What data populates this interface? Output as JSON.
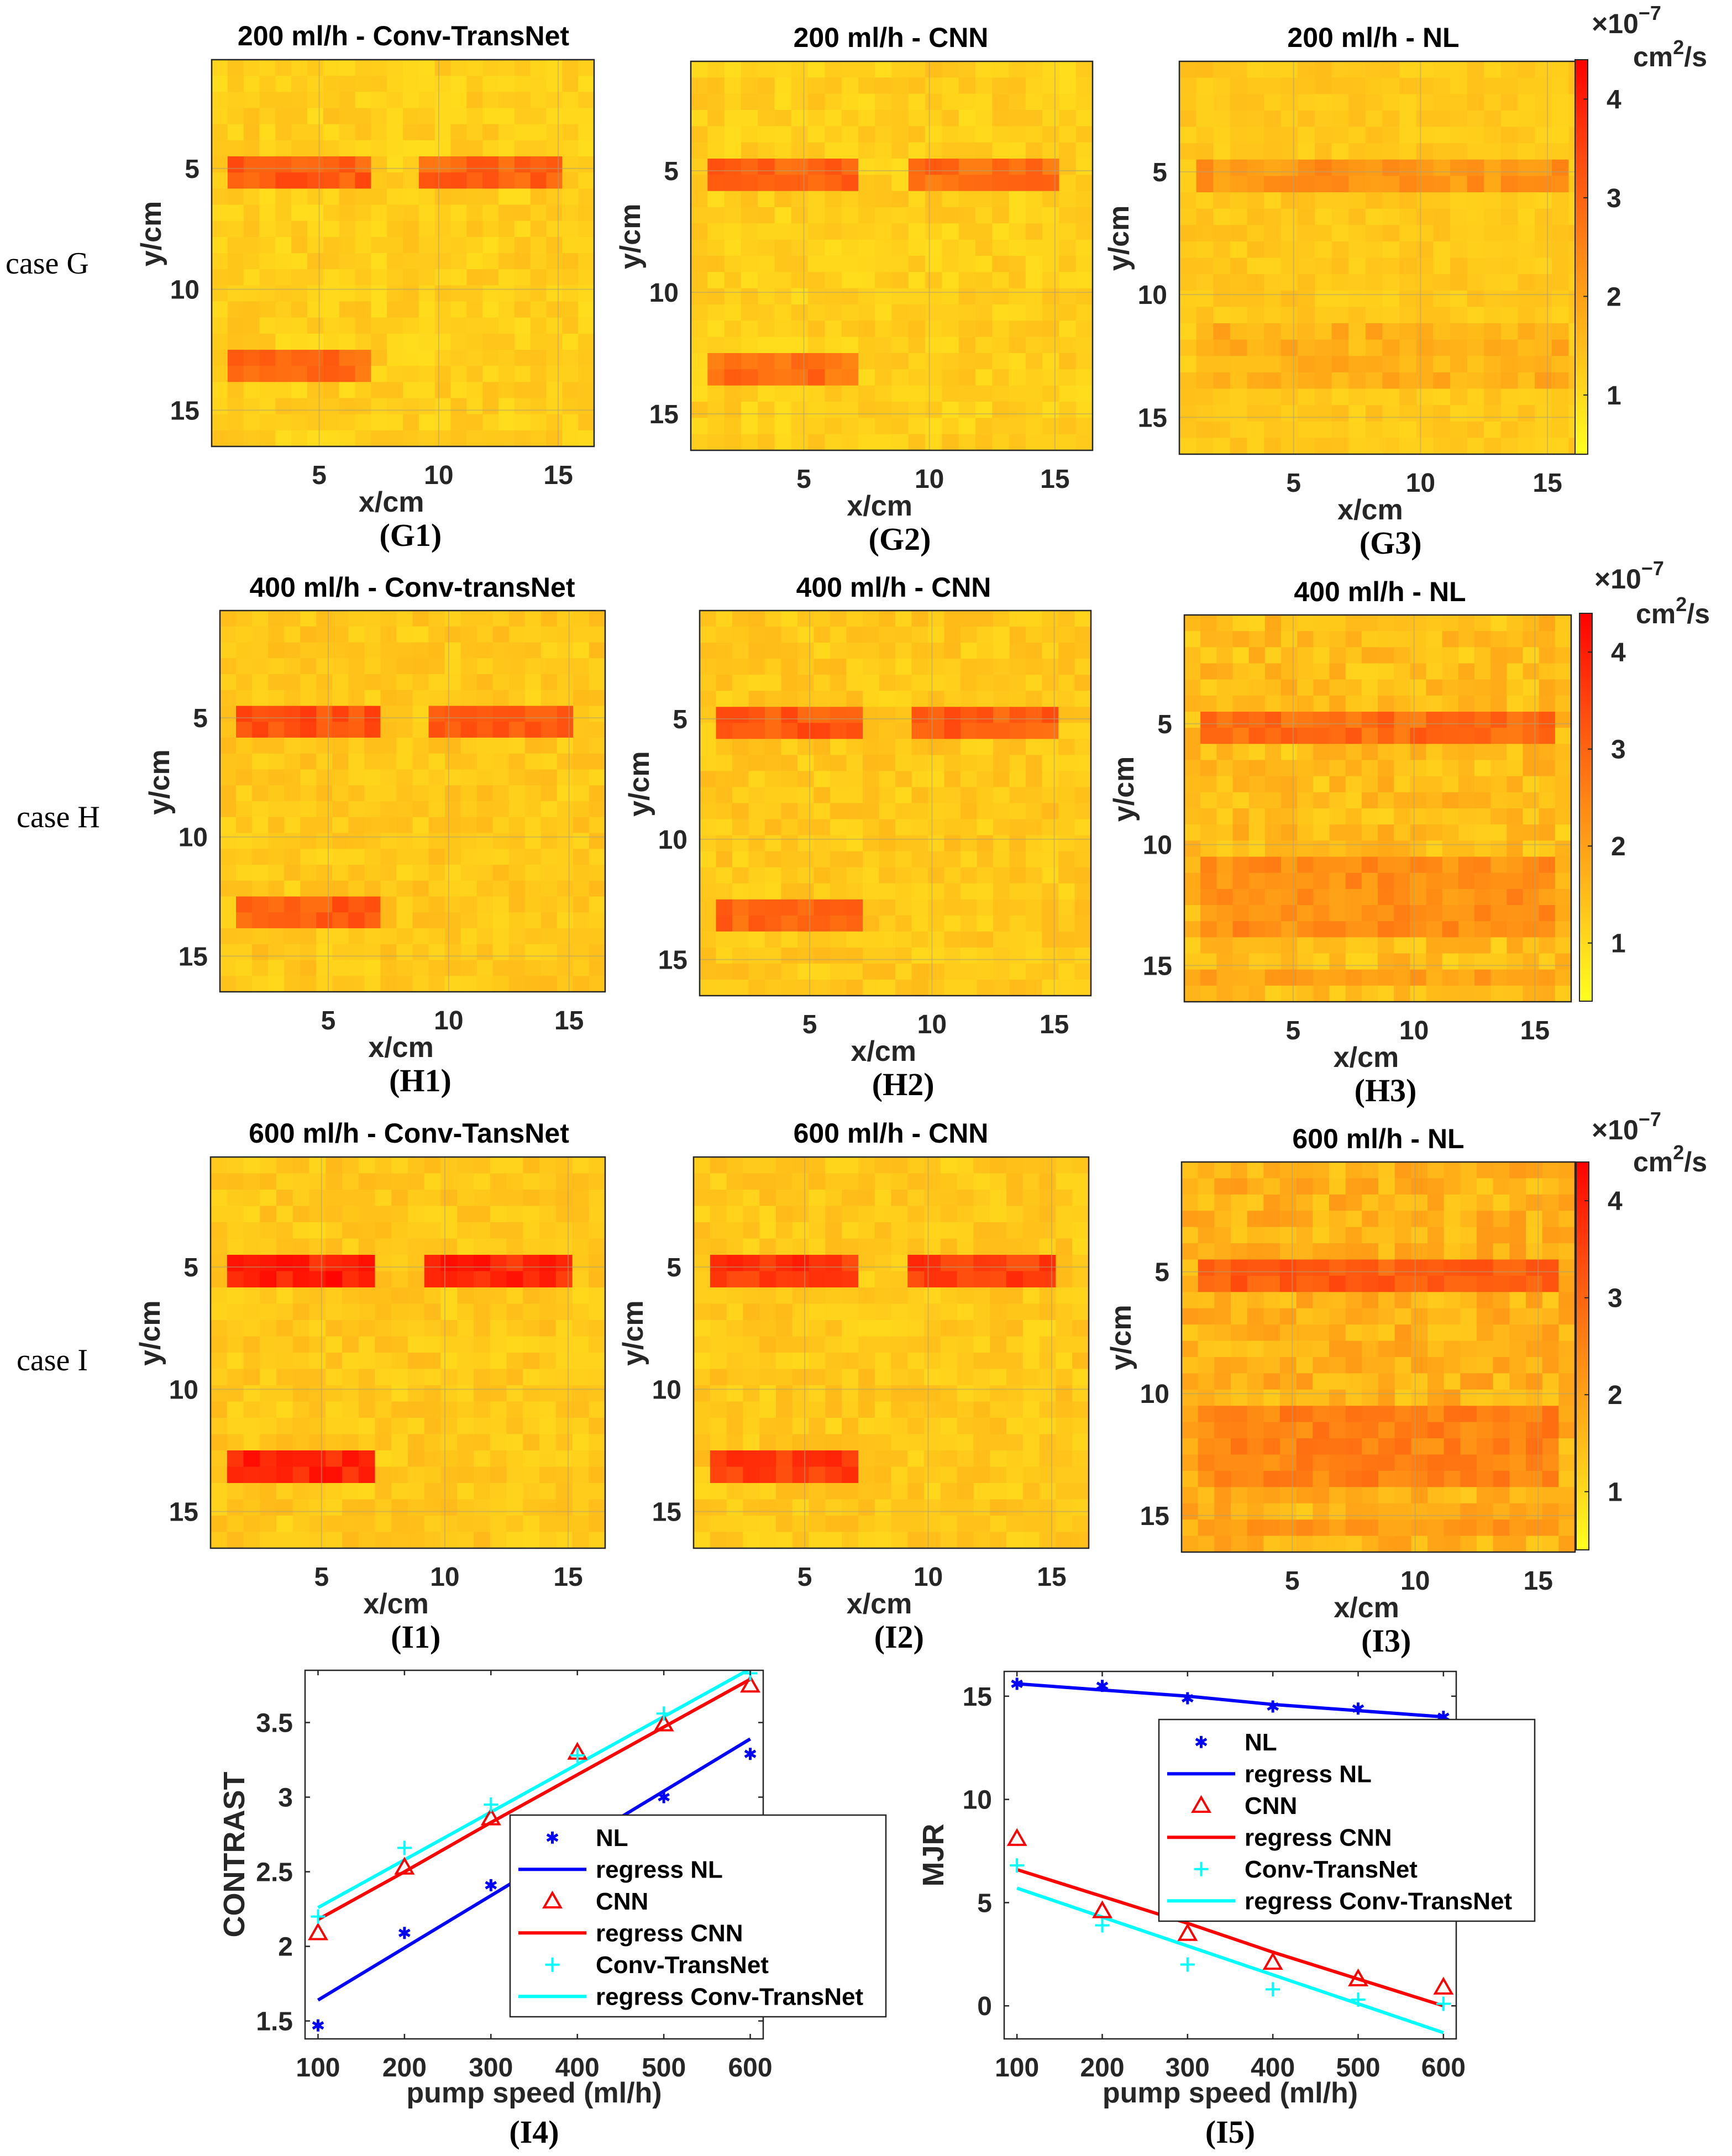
{
  "figure": {
    "case_labels": [
      "case G",
      "case H",
      "case I"
    ]
  },
  "colorbar": {
    "multiplier_base": "×10",
    "multiplier_exponent": "−7",
    "unit": "cm",
    "unit_exponent": "2",
    "unit_suffix": "/s",
    "ticks": [
      "1",
      "2",
      "3",
      "4"
    ],
    "colors": [
      "#ffff1e",
      "#ffc21a",
      "#ff8a14",
      "#ff4a0e",
      "#ff0000"
    ],
    "range": [
      0.4,
      4.4
    ]
  },
  "chart_data": [
    {
      "id": "G1",
      "type": "heatmap",
      "panel_label": "(G1)",
      "title": "200 ml/h - Conv-TransNet",
      "xlabel": "x/cm",
      "ylabel": "y/cm",
      "x_ticks": [
        5,
        10,
        15
      ],
      "y_ticks": [
        5,
        10,
        15
      ],
      "grid_size": 24,
      "x_range": [
        0.5,
        16.5
      ],
      "y_range": [
        0.5,
        16.5
      ],
      "background": 1.2,
      "background_noise": 0.5,
      "inclusions": [
        {
          "x": [
            1.3,
            7.2
          ],
          "y": [
            4.4,
            5.6
          ],
          "value": 3.1
        },
        {
          "x": [
            9.1,
            15.2
          ],
          "y": [
            4.4,
            5.6
          ],
          "value": 3.0
        },
        {
          "x": [
            1.3,
            7.2
          ],
          "y": [
            12.4,
            13.6
          ],
          "value": 2.9
        }
      ]
    },
    {
      "id": "G2",
      "type": "heatmap",
      "panel_label": "(G2)",
      "title": "200 ml/h - CNN",
      "xlabel": "x/cm",
      "ylabel": "y/cm",
      "x_ticks": [
        5,
        10,
        15
      ],
      "y_ticks": [
        5,
        10,
        15
      ],
      "grid_size": 24,
      "x_range": [
        0.5,
        16.5
      ],
      "y_range": [
        0.5,
        16.5
      ],
      "background": 1.2,
      "background_noise": 0.5,
      "inclusions": [
        {
          "x": [
            1.3,
            7.2
          ],
          "y": [
            4.4,
            5.6
          ],
          "value": 3.0
        },
        {
          "x": [
            9.1,
            15.2
          ],
          "y": [
            4.4,
            5.6
          ],
          "value": 2.9
        },
        {
          "x": [
            1.3,
            7.2
          ],
          "y": [
            12.4,
            13.6
          ],
          "value": 2.8
        }
      ]
    },
    {
      "id": "G3",
      "type": "heatmap",
      "panel_label": "(G3)",
      "title": "200 ml/h - NL",
      "xlabel": "x/cm",
      "ylabel": "y/cm",
      "x_ticks": [
        5,
        10,
        15
      ],
      "y_ticks": [
        5,
        10,
        15
      ],
      "grid_size": 24,
      "x_range": [
        0.5,
        16.5
      ],
      "y_range": [
        0.5,
        16.5
      ],
      "background": 1.3,
      "background_noise": 0.4,
      "inclusions": [
        {
          "x": [
            1.0,
            15.5
          ],
          "y": [
            4.4,
            5.6
          ],
          "value": 2.2
        },
        {
          "x": [
            1.0,
            15.5
          ],
          "y": [
            11.0,
            14.0
          ],
          "value": 1.7
        }
      ]
    },
    {
      "id": "H1",
      "type": "heatmap",
      "panel_label": "(H1)",
      "title": "400 ml/h - Conv-transNet",
      "xlabel": "x/cm",
      "ylabel": "y/cm",
      "x_ticks": [
        5,
        10,
        15
      ],
      "y_ticks": [
        5,
        10,
        15
      ],
      "grid_size": 24,
      "x_range": [
        0.5,
        16.5
      ],
      "y_range": [
        0.5,
        16.5
      ],
      "background": 1.3,
      "background_noise": 0.5,
      "inclusions": [
        {
          "x": [
            1.3,
            7.2
          ],
          "y": [
            4.4,
            5.6
          ],
          "value": 3.3
        },
        {
          "x": [
            9.1,
            15.2
          ],
          "y": [
            4.4,
            5.6
          ],
          "value": 3.2
        },
        {
          "x": [
            1.3,
            7.2
          ],
          "y": [
            12.4,
            13.6
          ],
          "value": 3.1
        }
      ]
    },
    {
      "id": "H2",
      "type": "heatmap",
      "panel_label": "(H2)",
      "title": "400 ml/h - CNN",
      "xlabel": "x/cm",
      "ylabel": "y/cm",
      "x_ticks": [
        5,
        10,
        15
      ],
      "y_ticks": [
        5,
        10,
        15
      ],
      "grid_size": 24,
      "x_range": [
        0.5,
        16.5
      ],
      "y_range": [
        0.5,
        16.5
      ],
      "background": 1.3,
      "background_noise": 0.5,
      "inclusions": [
        {
          "x": [
            1.3,
            7.2
          ],
          "y": [
            4.4,
            5.6
          ],
          "value": 3.2
        },
        {
          "x": [
            9.1,
            15.2
          ],
          "y": [
            4.4,
            5.6
          ],
          "value": 3.1
        },
        {
          "x": [
            1.3,
            7.2
          ],
          "y": [
            12.4,
            13.6
          ],
          "value": 3.0
        }
      ]
    },
    {
      "id": "H3",
      "type": "heatmap",
      "panel_label": "(H3)",
      "title": "400 ml/h - NL",
      "xlabel": "x/cm",
      "ylabel": "y/cm",
      "x_ticks": [
        5,
        10,
        15
      ],
      "y_ticks": [
        5,
        10,
        15
      ],
      "grid_size": 24,
      "x_range": [
        0.5,
        16.5
      ],
      "y_range": [
        0.5,
        16.5
      ],
      "background": 1.5,
      "background_noise": 0.8,
      "inclusions": [
        {
          "x": [
            1.0,
            15.5
          ],
          "y": [
            4.4,
            5.6
          ],
          "value": 2.9
        },
        {
          "x": [
            1.0,
            15.5
          ],
          "y": [
            10.5,
            14.0
          ],
          "value": 2.3
        },
        {
          "x": [
            1.0,
            15.5
          ],
          "y": [
            15.0,
            16.0
          ],
          "value": 2.0
        }
      ]
    },
    {
      "id": "I1",
      "type": "heatmap",
      "panel_label": "(I1)",
      "title": "600 ml/h - Conv-TansNet",
      "xlabel": "x/cm",
      "ylabel": "y/cm",
      "x_ticks": [
        5,
        10,
        15
      ],
      "y_ticks": [
        5,
        10,
        15
      ],
      "grid_size": 24,
      "x_range": [
        0.5,
        16.5
      ],
      "y_range": [
        0.5,
        16.5
      ],
      "background": 1.3,
      "background_noise": 0.5,
      "inclusions": [
        {
          "x": [
            1.3,
            7.2
          ],
          "y": [
            4.4,
            5.6
          ],
          "value": 4.0
        },
        {
          "x": [
            9.1,
            15.2
          ],
          "y": [
            4.4,
            5.6
          ],
          "value": 3.9
        },
        {
          "x": [
            1.3,
            7.2
          ],
          "y": [
            12.4,
            13.6
          ],
          "value": 3.9
        }
      ]
    },
    {
      "id": "I2",
      "type": "heatmap",
      "panel_label": "(I2)",
      "title": "600 ml/h - CNN",
      "xlabel": "x/cm",
      "ylabel": "y/cm",
      "x_ticks": [
        5,
        10,
        15
      ],
      "y_ticks": [
        5,
        10,
        15
      ],
      "grid_size": 24,
      "x_range": [
        0.5,
        16.5
      ],
      "y_range": [
        0.5,
        16.5
      ],
      "background": 1.3,
      "background_noise": 0.5,
      "inclusions": [
        {
          "x": [
            1.3,
            7.2
          ],
          "y": [
            4.4,
            5.6
          ],
          "value": 3.7
        },
        {
          "x": [
            9.1,
            15.2
          ],
          "y": [
            4.4,
            5.6
          ],
          "value": 3.6
        },
        {
          "x": [
            1.3,
            7.2
          ],
          "y": [
            12.4,
            13.6
          ],
          "value": 3.6
        }
      ]
    },
    {
      "id": "I3",
      "type": "heatmap",
      "panel_label": "(I3)",
      "title": "600 ml/h - NL",
      "xlabel": "x/cm",
      "ylabel": "y/cm",
      "x_ticks": [
        5,
        10,
        15
      ],
      "y_ticks": [
        5,
        10,
        15
      ],
      "grid_size": 24,
      "x_range": [
        0.5,
        16.5
      ],
      "y_range": [
        0.5,
        16.5
      ],
      "background": 1.7,
      "background_noise": 0.9,
      "inclusions": [
        {
          "x": [
            1.0,
            15.5
          ],
          "y": [
            4.4,
            5.6
          ],
          "value": 3.1
        },
        {
          "x": [
            1.0,
            15.5
          ],
          "y": [
            10.5,
            14.0
          ],
          "value": 2.5
        },
        {
          "x": [
            1.0,
            15.5
          ],
          "y": [
            15.0,
            16.0
          ],
          "value": 2.2
        }
      ]
    },
    {
      "id": "I4",
      "type": "scatter",
      "panel_label": "(I4)",
      "xlabel": "pump speed (ml/h)",
      "ylabel": "CONTRAST",
      "x": [
        100,
        200,
        300,
        400,
        500,
        600
      ],
      "x_ticks": [
        100,
        200,
        300,
        400,
        500,
        600
      ],
      "y_ticks": [
        1.5,
        2,
        2.5,
        3,
        3.5
      ],
      "xlim": [
        85,
        615
      ],
      "ylim": [
        1.38,
        3.85
      ],
      "legend_position": "lower-right",
      "series": [
        {
          "name": "NL",
          "marker": "asterisk",
          "color": "#0000ff",
          "values": [
            1.47,
            2.09,
            2.41,
            2.8,
            3.0,
            3.29
          ]
        },
        {
          "name": "regress NL",
          "line": true,
          "color": "#0000ff",
          "values": [
            1.64,
            1.99,
            2.34,
            2.69,
            3.04,
            3.39
          ]
        },
        {
          "name": "CNN",
          "marker": "triangle",
          "color": "#ff0000",
          "values": [
            2.09,
            2.53,
            2.86,
            3.3,
            3.49,
            3.75
          ]
        },
        {
          "name": "regress CNN",
          "line": true,
          "color": "#ff0000",
          "values": [
            2.18,
            2.5,
            2.83,
            3.15,
            3.47,
            3.79
          ]
        },
        {
          "name": "Conv-TransNet",
          "marker": "plus",
          "color": "#00ffff",
          "values": [
            2.2,
            2.66,
            2.95,
            3.28,
            3.56,
            3.83
          ]
        },
        {
          "name": "regress Conv-TransNet",
          "line": true,
          "color": "#00ffff",
          "values": [
            2.26,
            2.58,
            2.9,
            3.22,
            3.54,
            3.86
          ]
        }
      ]
    },
    {
      "id": "I5",
      "type": "scatter",
      "panel_label": "(I5)",
      "xlabel": "pump speed (ml/h)",
      "ylabel": "MJR",
      "x": [
        100,
        200,
        300,
        400,
        500,
        600
      ],
      "x_ticks": [
        100,
        200,
        300,
        400,
        500,
        600
      ],
      "y_ticks": [
        0,
        5,
        10,
        15
      ],
      "xlim": [
        85,
        615
      ],
      "ylim": [
        -1.6,
        16.2
      ],
      "legend_position": "upper-right",
      "series": [
        {
          "name": "NL",
          "marker": "asterisk",
          "color": "#0000ff",
          "values": [
            15.6,
            15.5,
            14.9,
            14.5,
            14.4,
            14.0
          ]
        },
        {
          "name": "regress NL",
          "line": true,
          "color": "#0000ff",
          "values": [
            15.6,
            15.3,
            15.0,
            14.6,
            14.3,
            14.0
          ]
        },
        {
          "name": "CNN",
          "marker": "triangle",
          "color": "#ff0000",
          "values": [
            8.1,
            4.6,
            3.5,
            2.1,
            1.3,
            0.9
          ]
        },
        {
          "name": "regress CNN",
          "line": true,
          "color": "#ff0000",
          "values": [
            6.6,
            5.3,
            4.0,
            2.6,
            1.3,
            0.0
          ]
        },
        {
          "name": "Conv-TransNet",
          "marker": "plus",
          "color": "#00ffff",
          "values": [
            6.8,
            3.9,
            2.0,
            0.8,
            0.3,
            0.1
          ]
        },
        {
          "name": "regress Conv-TransNet",
          "line": true,
          "color": "#00ffff",
          "values": [
            5.7,
            4.3,
            2.9,
            1.5,
            0.1,
            -1.3
          ]
        }
      ]
    }
  ]
}
